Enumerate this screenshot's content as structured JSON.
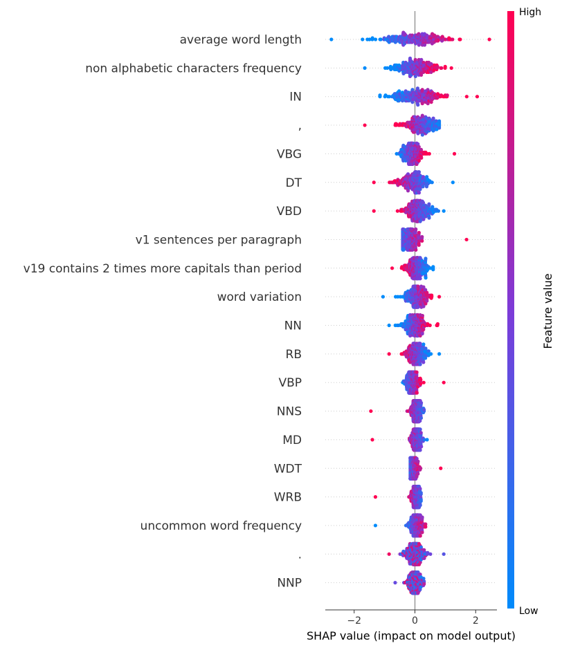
{
  "chart_data": {
    "type": "scatter",
    "subtype": "shap-beeswarm",
    "xlabel": "SHAP value (impact on model output)",
    "xlim": [
      -2.95,
      2.7
    ],
    "xticks": [
      -2,
      0,
      2
    ],
    "xtick_labels": [
      "−2",
      "0",
      "2"
    ],
    "colorbar": {
      "label": "Feature value",
      "high": "High",
      "low": "Low",
      "low_color": "#008bfb",
      "high_color": "#ff0052"
    },
    "zero_line": true,
    "grid": false,
    "features": [
      {
        "name": "average word length",
        "min": -2.75,
        "max": 2.45,
        "center": 0,
        "spread": 1.05,
        "polarity": 1,
        "neg_tail": 1.0,
        "pos_tail": 1.1
      },
      {
        "name": "non alphabetic characters frequency",
        "min": -1.65,
        "max": 1.2,
        "center": 0,
        "spread": 0.7,
        "polarity": 1,
        "neg_tail": 0.9,
        "pos_tail": 0.8
      },
      {
        "name": "IN",
        "min": -1.15,
        "max": 2.05,
        "center": 0.1,
        "spread": 0.75,
        "polarity": 1,
        "neg_tail": 0.7,
        "pos_tail": 1.3
      },
      {
        "name": ",",
        "min": -1.65,
        "max": 0.8,
        "center": 0.2,
        "spread": 0.55,
        "polarity": -1,
        "neg_tail": 1.3,
        "pos_tail": 0.5
      },
      {
        "name": "VBG",
        "min": -0.6,
        "max": 1.3,
        "center": -0.1,
        "spread": 0.35,
        "polarity": 1,
        "neg_tail": 0.4,
        "pos_tail": 1.0
      },
      {
        "name": "DT",
        "min": -1.35,
        "max": 1.25,
        "center": -0.05,
        "spread": 0.45,
        "polarity": -1,
        "neg_tail": 1.0,
        "pos_tail": 0.9
      },
      {
        "name": "VBD",
        "min": -1.35,
        "max": 0.95,
        "center": 0.1,
        "spread": 0.45,
        "polarity": -1,
        "neg_tail": 1.0,
        "pos_tail": 0.6
      },
      {
        "name": "v1 sentences per paragraph",
        "min": -0.4,
        "max": 1.7,
        "center": -0.15,
        "spread": 0.25,
        "polarity": 1,
        "neg_tail": 0.3,
        "pos_tail": 1.4
      },
      {
        "name": "v19 contains 2 times more capitals than period",
        "min": -0.75,
        "max": 0.6,
        "center": 0.05,
        "spread": 0.35,
        "polarity": -1,
        "neg_tail": 0.4,
        "pos_tail": 0.4
      },
      {
        "name": "word variation",
        "min": -1.05,
        "max": 0.8,
        "center": 0.05,
        "spread": 0.35,
        "polarity": 1,
        "neg_tail": 0.9,
        "pos_tail": 0.6
      },
      {
        "name": "NN",
        "min": -0.85,
        "max": 0.75,
        "center": 0.0,
        "spread": 0.35,
        "polarity": 1,
        "neg_tail": 0.6,
        "pos_tail": 0.6
      },
      {
        "name": "RB",
        "min": -0.85,
        "max": 0.8,
        "center": 0.05,
        "spread": 0.3,
        "polarity": -1,
        "neg_tail": 0.7,
        "pos_tail": 0.5
      },
      {
        "name": "VBP",
        "min": -0.4,
        "max": 0.95,
        "center": -0.1,
        "spread": 0.2,
        "polarity": 1,
        "neg_tail": 0.3,
        "pos_tail": 0.9
      },
      {
        "name": "NNS",
        "min": -1.45,
        "max": 0.3,
        "center": 0.05,
        "spread": 0.15,
        "polarity": -1,
        "neg_tail": 1.3,
        "pos_tail": 0.2
      },
      {
        "name": "MD",
        "min": -1.4,
        "max": 0.4,
        "center": 0.05,
        "spread": 0.15,
        "polarity": -1,
        "neg_tail": 1.2,
        "pos_tail": 0.3
      },
      {
        "name": "WDT",
        "min": -0.15,
        "max": 0.85,
        "center": -0.05,
        "spread": 0.12,
        "polarity": 1,
        "neg_tail": 0.1,
        "pos_tail": 0.8
      },
      {
        "name": "WRB",
        "min": -1.3,
        "max": 0.2,
        "center": 0.05,
        "spread": 0.12,
        "polarity": -1,
        "neg_tail": 1.2,
        "pos_tail": 0.15
      },
      {
        "name": "uncommon word frequency",
        "min": -1.3,
        "max": 0.35,
        "center": 0.05,
        "spread": 0.2,
        "polarity": 1,
        "neg_tail": 1.1,
        "pos_tail": 0.25
      },
      {
        "name": ".",
        "min": -0.85,
        "max": 0.95,
        "center": 0.0,
        "spread": 0.3,
        "polarity": 0,
        "neg_tail": 0.7,
        "pos_tail": 0.8
      },
      {
        "name": "NNP",
        "min": -0.65,
        "max": 0.3,
        "center": 0.0,
        "spread": 0.22,
        "polarity": 0,
        "neg_tail": 0.5,
        "pos_tail": 0.25
      }
    ]
  }
}
